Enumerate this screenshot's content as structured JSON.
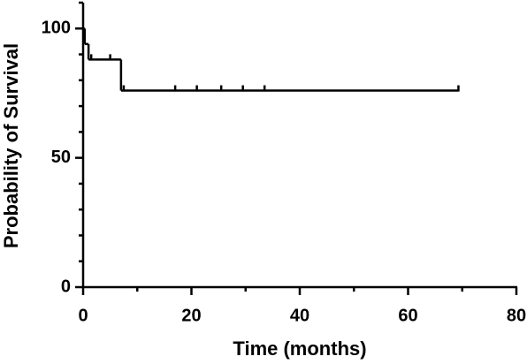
{
  "chart_data": {
    "type": "survival-step",
    "x_label": "Time (months)",
    "y_label": "Probability of Survival",
    "series": [
      {
        "color": "#000000",
        "x": [
          0,
          0.3,
          1,
          7,
          69.3
        ],
        "values": [
          100,
          94,
          88,
          76,
          76
        ]
      }
    ],
    "censored": {
      "x": [
        1.5,
        5,
        7.5,
        17,
        21,
        25.5,
        29.5,
        33.5,
        69.3
      ],
      "values": [
        88,
        88,
        76,
        76,
        76,
        76,
        76,
        76,
        76
      ]
    },
    "xlim": [
      0,
      80
    ],
    "xticks": [
      0,
      20,
      40,
      60,
      80
    ],
    "xminor_ticks": [
      10,
      30,
      50,
      70
    ],
    "ylim": [
      0,
      110
    ],
    "yticks": [
      0,
      50,
      100
    ],
    "yminor_ticks": [
      10,
      20,
      30,
      40,
      60,
      70,
      80,
      90,
      110
    ]
  }
}
